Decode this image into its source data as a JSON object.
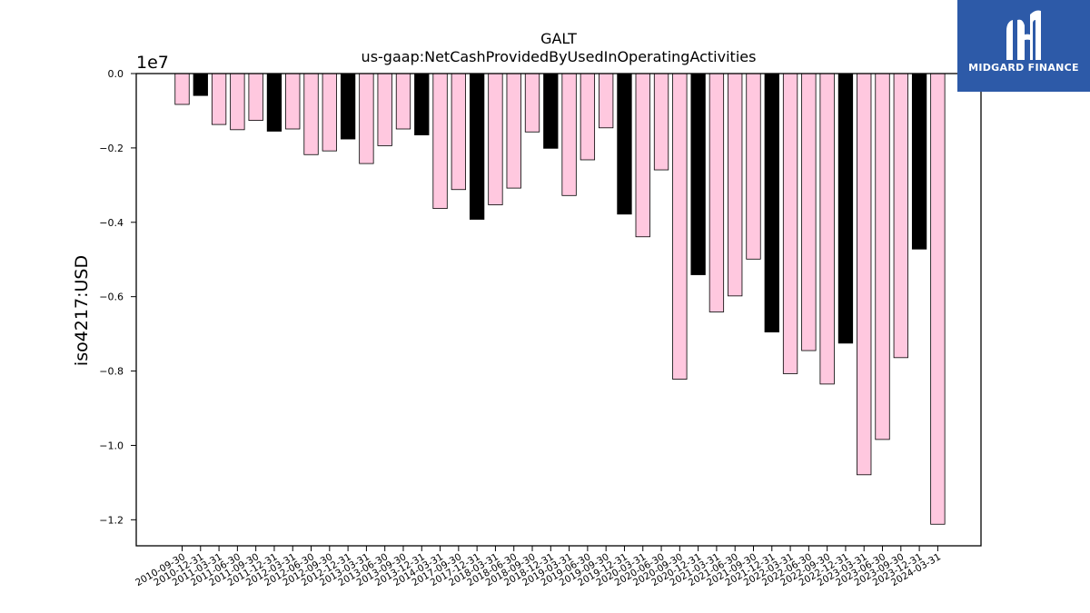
{
  "chart_data": {
    "type": "bar",
    "title": "GALT",
    "subtitle": "us-gaap:NetCashProvidedByUsedInOperatingActivities",
    "ylabel": "iso4217:USD",
    "offset_label": "1e7",
    "ylim": [
      -12700000,
      0
    ],
    "yticks": [
      0.0,
      -0.2,
      -0.4,
      -0.6,
      -0.8,
      -1.0,
      -1.2
    ],
    "ytick_labels": [
      "0.0",
      "−0.2",
      "−0.4",
      "−0.6",
      "−0.8",
      "−1.0",
      "−1.2"
    ],
    "ytick_scale": 10000000,
    "colors": {
      "default": "#ffc8df",
      "highlight": "#000000",
      "edge": "#000000"
    },
    "categories": [
      "2010-09-30",
      "2010-12-31",
      "2011-03-31",
      "2011-06-30",
      "2011-09-30",
      "2011-12-31",
      "2012-03-31",
      "2012-06-30",
      "2012-09-30",
      "2012-12-31",
      "2013-03-31",
      "2013-06-30",
      "2013-09-30",
      "2013-12-31",
      "2014-03-31",
      "2017-09-30",
      "2017-12-31",
      "2018-03-31",
      "2018-06-30",
      "2018-09-30",
      "2018-12-31",
      "2019-03-31",
      "2019-06-30",
      "2019-09-30",
      "2019-12-31",
      "2020-03-31",
      "2020-06-30",
      "2020-09-30",
      "2020-12-31",
      "2021-03-31",
      "2021-06-30",
      "2021-09-30",
      "2021-12-31",
      "2022-03-31",
      "2022-06-30",
      "2022-09-30",
      "2022-12-31",
      "2023-03-31",
      "2023-06-30",
      "2023-09-30",
      "2023-12-31",
      "2024-03-31"
    ],
    "values": [
      -830000,
      -590000,
      -1370000,
      -1510000,
      -1260000,
      -1550000,
      -1490000,
      -2180000,
      -2080000,
      -1760000,
      -2420000,
      -1940000,
      -1490000,
      -1650000,
      -3630000,
      -3120000,
      -3920000,
      -3530000,
      -3080000,
      -1570000,
      -2010000,
      -3280000,
      -2320000,
      -1460000,
      -3780000,
      -4390000,
      -2590000,
      -8220000,
      -5410000,
      -6410000,
      -5980000,
      -4990000,
      -6950000,
      -8070000,
      -7450000,
      -8350000,
      -7250000,
      -10790000,
      -9840000,
      -7640000,
      -4720000,
      -12120000
    ],
    "highlight": [
      false,
      true,
      false,
      false,
      false,
      true,
      false,
      false,
      false,
      true,
      false,
      false,
      false,
      true,
      false,
      false,
      true,
      false,
      false,
      false,
      true,
      false,
      false,
      false,
      true,
      false,
      false,
      false,
      true,
      false,
      false,
      false,
      true,
      false,
      false,
      false,
      true,
      false,
      false,
      false,
      true,
      false
    ]
  },
  "logo": {
    "text": "MIDGARD FINANCE"
  }
}
